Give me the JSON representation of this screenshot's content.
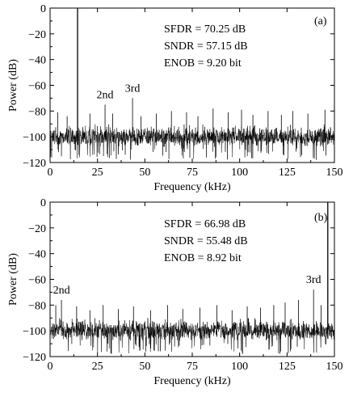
{
  "chart_data": [
    {
      "type": "line",
      "panel_label": "(a)",
      "xlabel": "Frequency (kHz)",
      "ylabel": "Power (dB)",
      "xlim": [
        0,
        150
      ],
      "ylim": [
        -120,
        0
      ],
      "xticks": [
        0,
        25,
        50,
        75,
        100,
        125,
        150
      ],
      "yticks": [
        0,
        -20,
        -40,
        -60,
        -80,
        -100,
        -120
      ],
      "metrics": [
        "SFDR = 70.25 dB",
        "SNDR = 57.15 dB",
        "ENOB = 9.20 bit"
      ],
      "noise_floor_db": -100,
      "fundamental": {
        "x": 14.5,
        "y": 0
      },
      "annotations": [
        {
          "text": "2nd",
          "x": 29,
          "y": -75
        },
        {
          "text": "3rd",
          "x": 43.5,
          "y": -70
        }
      ],
      "spurs": [
        {
          "x": 4,
          "y": -81
        },
        {
          "x": 9,
          "y": -84
        },
        {
          "x": 21,
          "y": -82
        },
        {
          "x": 29,
          "y": -75
        },
        {
          "x": 33,
          "y": -82
        },
        {
          "x": 43.5,
          "y": -70
        },
        {
          "x": 48,
          "y": -84
        },
        {
          "x": 56,
          "y": -82
        },
        {
          "x": 64,
          "y": -80
        },
        {
          "x": 72,
          "y": -81
        },
        {
          "x": 78,
          "y": -84
        },
        {
          "x": 86,
          "y": -78
        },
        {
          "x": 94,
          "y": -81
        },
        {
          "x": 101,
          "y": -79
        },
        {
          "x": 107,
          "y": -83
        },
        {
          "x": 115,
          "y": -80
        },
        {
          "x": 122,
          "y": -83
        },
        {
          "x": 128,
          "y": -80
        },
        {
          "x": 136,
          "y": -82
        },
        {
          "x": 145,
          "y": -79
        }
      ]
    },
    {
      "type": "line",
      "panel_label": "(b)",
      "xlabel": "Frequency (kHz)",
      "ylabel": "Power (dB)",
      "xlim": [
        0,
        150
      ],
      "ylim": [
        -120,
        0
      ],
      "xticks": [
        0,
        25,
        50,
        75,
        100,
        125,
        150
      ],
      "yticks": [
        0,
        -20,
        -40,
        -60,
        -80,
        -100,
        -120
      ],
      "metrics": [
        "SFDR = 66.98 dB",
        "SNDR = 55.48 dB",
        "ENOB = 8.92 bit"
      ],
      "noise_floor_db": -100,
      "fundamental": {
        "x": 146.5,
        "y": 0
      },
      "annotations": [
        {
          "text": "2nd",
          "x": 6,
          "y": -76
        },
        {
          "text": "3rd",
          "x": 139,
          "y": -68
        }
      ],
      "spurs": [
        {
          "x": 3,
          "y": -80
        },
        {
          "x": 6,
          "y": -76
        },
        {
          "x": 14,
          "y": -81
        },
        {
          "x": 21,
          "y": -84
        },
        {
          "x": 28,
          "y": -80
        },
        {
          "x": 36,
          "y": -83
        },
        {
          "x": 44,
          "y": -81
        },
        {
          "x": 53,
          "y": -84
        },
        {
          "x": 62,
          "y": -80
        },
        {
          "x": 70,
          "y": -83
        },
        {
          "x": 79,
          "y": -82
        },
        {
          "x": 88,
          "y": -80
        },
        {
          "x": 96,
          "y": -84
        },
        {
          "x": 104,
          "y": -81
        },
        {
          "x": 111,
          "y": -82
        },
        {
          "x": 118,
          "y": -80
        },
        {
          "x": 124,
          "y": -78
        },
        {
          "x": 131,
          "y": -76
        },
        {
          "x": 139,
          "y": -68
        },
        {
          "x": 143,
          "y": -80
        }
      ]
    }
  ]
}
